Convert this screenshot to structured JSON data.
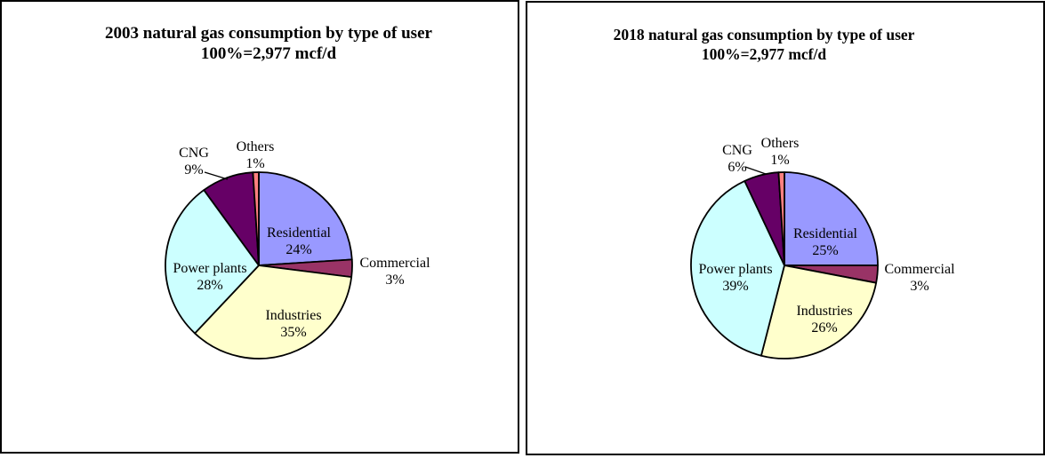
{
  "figure": {
    "background": "#ffffff",
    "panel_border_color": "#000000",
    "slice_outline_color": "#000000",
    "text_color": "#000000"
  },
  "chart_data": [
    {
      "type": "pie",
      "title": "2003 natural gas consumption by type of user",
      "subtitle": "100%=2,977 mcf/d",
      "categories": [
        "Residential",
        "Commercial",
        "Industries",
        "Power plants",
        "CNG",
        "Others"
      ],
      "values": [
        24,
        3,
        35,
        28,
        9,
        1
      ],
      "percent_labels": [
        "24%",
        "3%",
        "35%",
        "28%",
        "9%",
        "1%"
      ],
      "colors": [
        "#9999FF",
        "#993366",
        "#FFFFCC",
        "#CCFFFF",
        "#660066",
        "#FF8080"
      ],
      "start_angle_deg": 0,
      "direction": "clockwise",
      "legend": false,
      "data_label_style": "category name above percentage",
      "label_placement": [
        "inside",
        "outside-right",
        "inside",
        "inside",
        "outside-top-left with leader line",
        "outside-top"
      ]
    },
    {
      "type": "pie",
      "title": "2018 natural gas consumption by type of user",
      "subtitle": "100%=2,977 mcf/d",
      "categories": [
        "Residential",
        "Commercial",
        "Industries",
        "Power plants",
        "CNG",
        "Others"
      ],
      "values": [
        25,
        3,
        26,
        39,
        6,
        1
      ],
      "percent_labels": [
        "25%",
        "3%",
        "26%",
        "39%",
        "6%",
        "1%"
      ],
      "colors": [
        "#9999FF",
        "#993366",
        "#FFFFCC",
        "#CCFFFF",
        "#660066",
        "#FF8080"
      ],
      "start_angle_deg": 0,
      "direction": "clockwise",
      "legend": false,
      "data_label_style": "category name above percentage",
      "label_placement": [
        "inside",
        "outside-right",
        "inside",
        "inside",
        "outside-top-left with leader line",
        "outside-top"
      ]
    }
  ]
}
